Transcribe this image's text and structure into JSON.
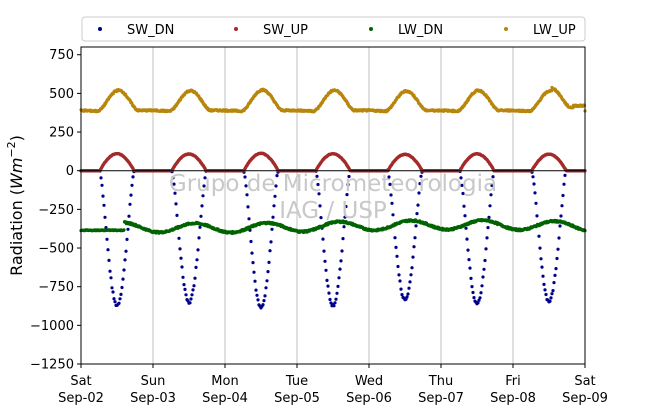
{
  "chart_data": {
    "type": "scatter",
    "ylabel": "Radiation",
    "ylabel_unit_base": "Wm",
    "ylabel_unit_exp": "−2",
    "ylim": [
      -1250,
      800
    ],
    "yticks": [
      -1250,
      -1000,
      -750,
      -500,
      -250,
      0,
      250,
      500,
      750
    ],
    "ytick_labels": [
      "−1250",
      "−1000",
      "−750",
      "−500",
      "−250",
      "0",
      "250",
      "500",
      "750"
    ],
    "xlim": [
      "2023-09-02",
      "2023-09-09"
    ],
    "xticks": [
      {
        "day": "Sat",
        "date": "Sep-02"
      },
      {
        "day": "Sun",
        "date": "Sep-03"
      },
      {
        "day": "Mon",
        "date": "Sep-04"
      },
      {
        "day": "Tue",
        "date": "Sep-05"
      },
      {
        "day": "Wed",
        "date": "Sep-06"
      },
      {
        "day": "Thu",
        "date": "Sep-07"
      },
      {
        "day": "Fri",
        "date": "Sep-08"
      },
      {
        "day": "Sat",
        "date": "Sep-09"
      }
    ],
    "grid_x": true,
    "zero_line": true,
    "legend_position": "top",
    "watermark": [
      "Grupo de Micrometeorologia",
      "IAG / USP"
    ],
    "series": [
      {
        "name": "SW_DN",
        "color": "#00008b",
        "night_value": 0,
        "daily_peak": -870,
        "day_start_hour": 6.3,
        "day_end_hour": 17.7
      },
      {
        "name": "SW_UP",
        "color": "#a52a2a",
        "night_value": 0,
        "daily_peak": 110,
        "day_start_hour": 6.3,
        "day_end_hour": 17.7
      },
      {
        "name": "LW_DN",
        "color": "#006400",
        "baseline": -360,
        "daily_amplitude": 30
      },
      {
        "name": "LW_UP",
        "color": "#b8860b",
        "night_value": 390,
        "daily_peak": 520
      }
    ]
  }
}
